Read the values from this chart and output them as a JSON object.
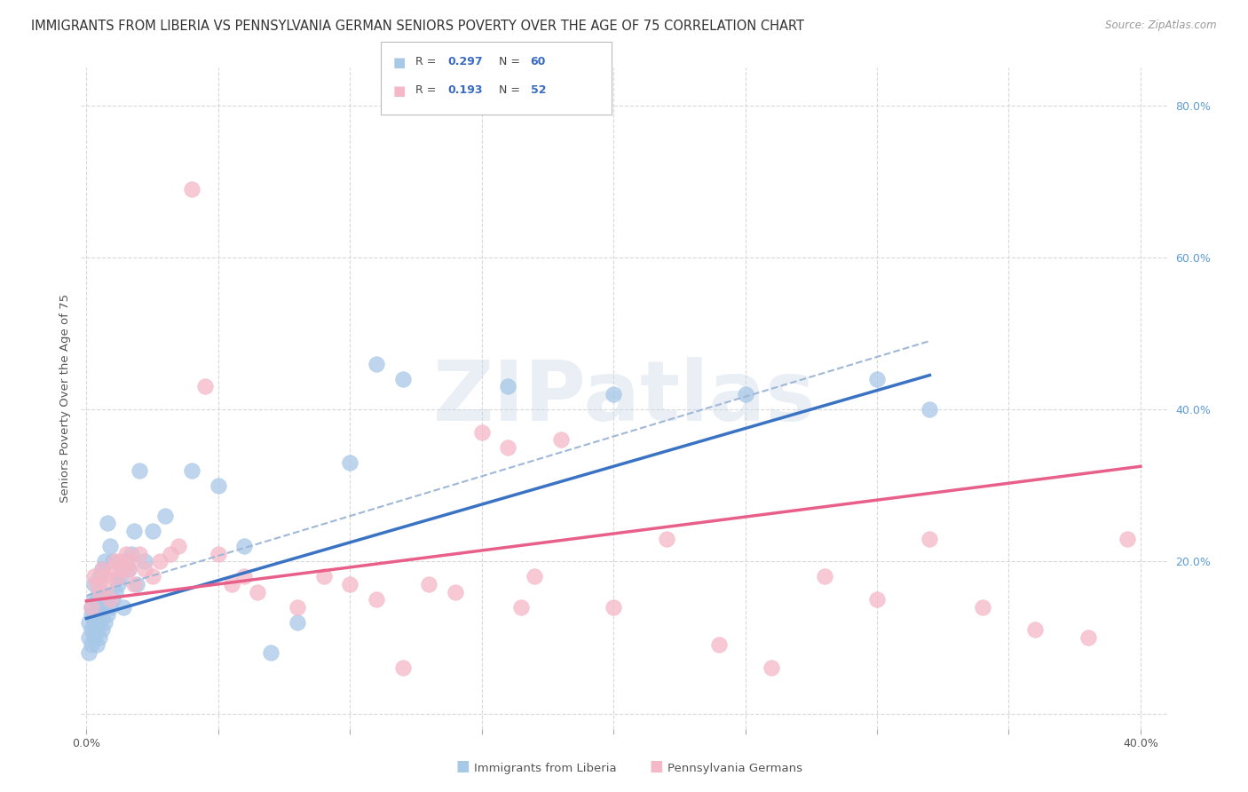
{
  "title": "IMMIGRANTS FROM LIBERIA VS PENNSYLVANIA GERMAN SENIORS POVERTY OVER THE AGE OF 75 CORRELATION CHART",
  "source": "Source: ZipAtlas.com",
  "ylabel": "Seniors Poverty Over the Age of 75",
  "xlim": [
    -0.002,
    0.41
  ],
  "ylim": [
    -0.02,
    0.85
  ],
  "xticks": [
    0.0,
    0.05,
    0.1,
    0.15,
    0.2,
    0.25,
    0.3,
    0.35,
    0.4
  ],
  "yticks_right": [
    0.0,
    0.2,
    0.4,
    0.6,
    0.8
  ],
  "series1_label": "Immigrants from Liberia",
  "series1_R": "0.297",
  "series1_N": "60",
  "series1_color": "#a8c8e8",
  "series1_line_color": "#3a72c4",
  "series1_dash_color": "#a0b8d8",
  "series2_label": "Pennsylvania Germans",
  "series2_R": "0.193",
  "series2_N": "52",
  "series2_color": "#f4b8c8",
  "series2_line_color": "#e8608a",
  "legend_color": "#3a6bc4",
  "watermark": "ZIPatlas",
  "background_color": "#ffffff",
  "grid_color": "#d8d8d8",
  "title_fontsize": 10.5,
  "axis_label_fontsize": 9.5,
  "tick_fontsize": 9,
  "series1_x": [
    0.001,
    0.001,
    0.001,
    0.002,
    0.002,
    0.002,
    0.002,
    0.003,
    0.003,
    0.003,
    0.003,
    0.003,
    0.004,
    0.004,
    0.004,
    0.004,
    0.005,
    0.005,
    0.005,
    0.005,
    0.005,
    0.006,
    0.006,
    0.006,
    0.006,
    0.007,
    0.007,
    0.007,
    0.008,
    0.008,
    0.009,
    0.009,
    0.01,
    0.01,
    0.011,
    0.012,
    0.013,
    0.014,
    0.015,
    0.016,
    0.017,
    0.018,
    0.019,
    0.02,
    0.022,
    0.025,
    0.03,
    0.04,
    0.05,
    0.06,
    0.07,
    0.08,
    0.1,
    0.11,
    0.12,
    0.16,
    0.2,
    0.25,
    0.3,
    0.32
  ],
  "series1_y": [
    0.08,
    0.1,
    0.12,
    0.09,
    0.11,
    0.13,
    0.14,
    0.1,
    0.12,
    0.13,
    0.15,
    0.17,
    0.09,
    0.11,
    0.13,
    0.15,
    0.1,
    0.12,
    0.14,
    0.16,
    0.18,
    0.11,
    0.14,
    0.16,
    0.19,
    0.12,
    0.15,
    0.2,
    0.13,
    0.25,
    0.14,
    0.22,
    0.15,
    0.2,
    0.16,
    0.17,
    0.18,
    0.14,
    0.2,
    0.19,
    0.21,
    0.24,
    0.17,
    0.32,
    0.2,
    0.24,
    0.26,
    0.32,
    0.3,
    0.22,
    0.08,
    0.12,
    0.33,
    0.46,
    0.44,
    0.43,
    0.42,
    0.42,
    0.44,
    0.4
  ],
  "series2_x": [
    0.002,
    0.003,
    0.004,
    0.005,
    0.006,
    0.007,
    0.008,
    0.009,
    0.01,
    0.011,
    0.012,
    0.013,
    0.014,
    0.015,
    0.016,
    0.017,
    0.018,
    0.02,
    0.022,
    0.025,
    0.028,
    0.032,
    0.035,
    0.04,
    0.045,
    0.05,
    0.055,
    0.06,
    0.065,
    0.08,
    0.09,
    0.1,
    0.11,
    0.12,
    0.13,
    0.14,
    0.15,
    0.165,
    0.18,
    0.2,
    0.22,
    0.24,
    0.26,
    0.28,
    0.3,
    0.32,
    0.34,
    0.36,
    0.38,
    0.395,
    0.16,
    0.17
  ],
  "series2_y": [
    0.14,
    0.18,
    0.17,
    0.16,
    0.19,
    0.18,
    0.17,
    0.15,
    0.19,
    0.2,
    0.18,
    0.2,
    0.19,
    0.21,
    0.19,
    0.2,
    0.17,
    0.21,
    0.19,
    0.18,
    0.2,
    0.21,
    0.22,
    0.69,
    0.43,
    0.21,
    0.17,
    0.18,
    0.16,
    0.14,
    0.18,
    0.17,
    0.15,
    0.06,
    0.17,
    0.16,
    0.37,
    0.14,
    0.36,
    0.14,
    0.23,
    0.09,
    0.06,
    0.18,
    0.15,
    0.23,
    0.14,
    0.11,
    0.1,
    0.23,
    0.35,
    0.18
  ],
  "trend1_x0": 0.0,
  "trend1_x1": 0.32,
  "trend1_y0": 0.125,
  "trend1_y1": 0.445,
  "trend1_dash_y0": 0.155,
  "trend1_dash_y1": 0.49,
  "trend2_x0": 0.0,
  "trend2_x1": 0.4,
  "trend2_y0": 0.148,
  "trend2_y1": 0.325
}
